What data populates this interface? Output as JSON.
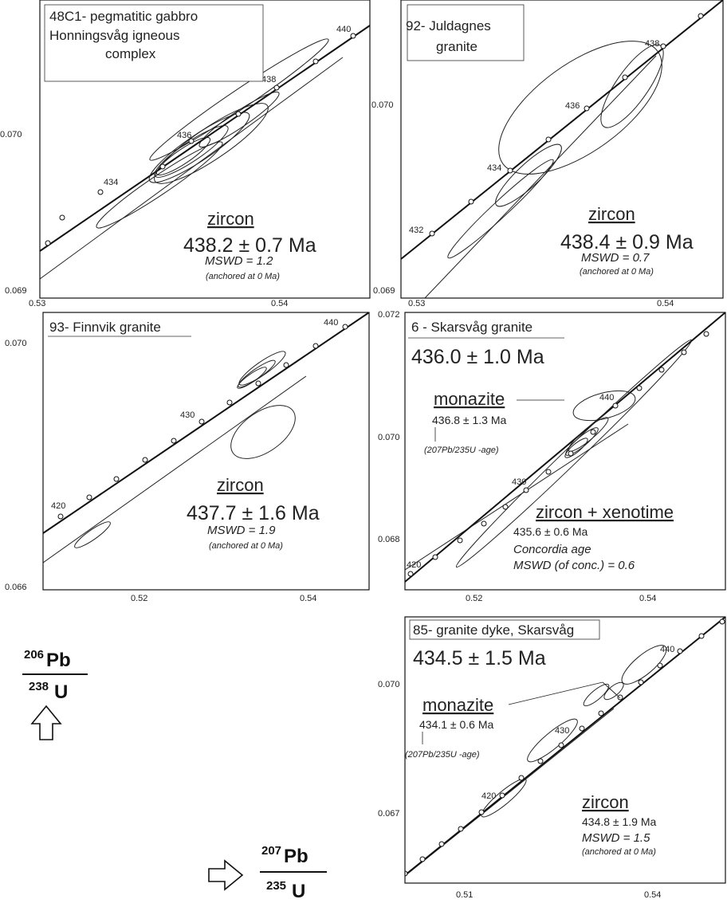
{
  "charts": [
    {
      "title_lines": [
        "48C1- pegmatitic gabbro",
        "Honningsvåg igneous",
        "complex"
      ],
      "mineral": "zircon",
      "age": "438.2 ± 0.7 Ma",
      "mswd": "MSWD = 1.2",
      "anchored": "(anchored at 0 Ma)",
      "x_ticks": [
        "0.53",
        "0.54"
      ],
      "y_ticks": [
        "0.070",
        "0.069"
      ],
      "concordia_age_labels": [
        "434",
        "436",
        "438",
        "440"
      ]
    },
    {
      "title_lines": [
        "92- Juldagnes",
        "granite"
      ],
      "mineral": "zircon",
      "age": "438.4 ± 0.9 Ma",
      "mswd": "MSWD = 0.7",
      "anchored": "(anchored at 0 Ma)",
      "x_ticks": [
        "0.53",
        "0.54"
      ],
      "y_ticks": [
        "0.070",
        "0.069"
      ],
      "concordia_age_labels": [
        "432",
        "434",
        "436",
        "438"
      ]
    },
    {
      "title_lines": [
        "93- Finnvik granite"
      ],
      "mineral": "zircon",
      "age": "437.7 ± 1.6 Ma",
      "mswd": "MSWD = 1.9",
      "anchored": "(anchored at 0 Ma)",
      "x_ticks": [
        "0.52",
        "0.54"
      ],
      "y_ticks": [
        "0.070",
        "0.066"
      ],
      "concordia_age_labels": [
        "420",
        "430",
        "440"
      ]
    },
    {
      "title_lines": [
        "6 - Skarsvåg granite"
      ],
      "total_age": "436.0 ± 1.0 Ma",
      "monazite": {
        "label": "monazite",
        "age": "436.8 ± 1.3 Ma",
        "note_pb": "(207Pb/235U -age)"
      },
      "zircon": {
        "label": "zircon + xenotime",
        "age": "435.6 ± 0.6 Ma",
        "line1": "Concordia age",
        "line2": "MSWD (of conc.) = 0.6"
      },
      "x_ticks": [
        "0.52",
        "0.54"
      ],
      "y_ticks": [
        "0.072",
        "0.070",
        "0.068"
      ],
      "concordia_age_labels": [
        "420",
        "430",
        "440"
      ]
    },
    {
      "title_lines": [
        "85- granite dyke, Skarsvåg"
      ],
      "total_age": "434.5 ± 1.5 Ma",
      "monazite": {
        "label": "monazite",
        "age": "434.1 ± 0.6 Ma",
        "note_pb": "(207Pb/235U -age)"
      },
      "zircon": {
        "label": "zircon",
        "age": "434.8 ± 1.9 Ma",
        "line1": "MSWD = 1.5",
        "line2": "(anchored at 0 Ma)"
      },
      "x_ticks": [
        "0.51",
        "0.54"
      ],
      "y_ticks": [
        "0.070",
        "0.067"
      ],
      "concordia_age_labels": [
        "420",
        "430",
        "440"
      ]
    }
  ],
  "axis_labels": {
    "y_num_iso": "206",
    "y_num_el": "Pb",
    "y_den_iso": "238",
    "y_den_el": "U",
    "x_num_iso": "207",
    "x_num_el": "Pb",
    "x_den_iso": "235",
    "x_den_el": "U"
  },
  "chart_data": [
    {
      "type": "scatter",
      "title": "48C1- pegmatitic gabbro Honningsvåg igneous complex",
      "xlabel": "207Pb/235U",
      "ylabel": "206Pb/238U",
      "xlim": [
        0.53,
        0.543
      ],
      "ylim": [
        0.069,
        0.0707
      ],
      "intercept_age_ma": 438.2,
      "intercept_err_ma": 0.7,
      "mswd": 1.2
    },
    {
      "type": "scatter",
      "title": "92- Juldagnes granite",
      "xlabel": "207Pb/235U",
      "ylabel": "206Pb/238U",
      "xlim": [
        0.53,
        0.542
      ],
      "ylim": [
        0.069,
        0.0705
      ],
      "intercept_age_ma": 438.4,
      "intercept_err_ma": 0.9,
      "mswd": 0.7
    },
    {
      "type": "scatter",
      "title": "93- Finnvik granite",
      "xlabel": "207Pb/235U",
      "ylabel": "206Pb/238U",
      "xlim": [
        0.51,
        0.545
      ],
      "ylim": [
        0.066,
        0.0708
      ],
      "intercept_age_ma": 437.7,
      "intercept_err_ma": 1.6,
      "mswd": 1.9
    },
    {
      "type": "scatter",
      "title": "6 - Skarsvåg granite",
      "xlabel": "207Pb/235U",
      "ylabel": "206Pb/238U",
      "xlim": [
        0.51,
        0.552
      ],
      "ylim": [
        0.067,
        0.0722
      ],
      "monazite_age_ma": 436.8,
      "monazite_err_ma": 1.3,
      "zircon_xenotime_age_ma": 435.6,
      "zircon_xenotime_err_ma": 0.6,
      "mswd": 0.6
    },
    {
      "type": "scatter",
      "title": "85- granite dyke, Skarsvåg",
      "xlabel": "207Pb/235U",
      "ylabel": "206Pb/238U",
      "xlim": [
        0.5,
        0.545
      ],
      "ylim": [
        0.066,
        0.071
      ],
      "monazite_age_ma": 434.1,
      "monazite_err_ma": 0.6,
      "zircon_age_ma": 434.8,
      "zircon_err_ma": 1.9,
      "mswd": 1.5
    }
  ]
}
